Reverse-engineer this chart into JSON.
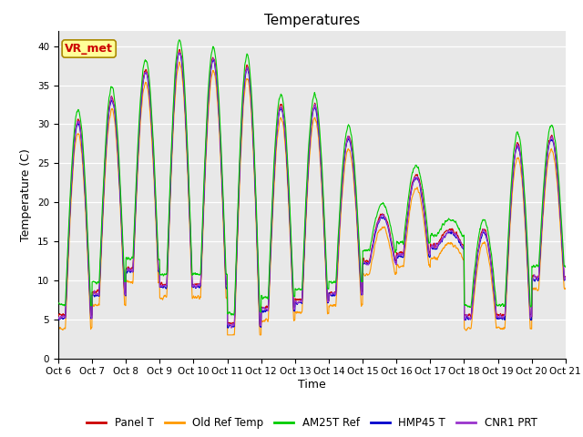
{
  "title": "Temperatures",
  "xlabel": "Time",
  "ylabel": "Temperature (C)",
  "ylim": [
    0,
    42
  ],
  "yticks": [
    0,
    5,
    10,
    15,
    20,
    25,
    30,
    35,
    40
  ],
  "date_labels": [
    "Oct 6",
    "Oct 7",
    "Oct 8",
    "Oct 9",
    "Oct 10",
    "Oct 11",
    "Oct 12",
    "Oct 13",
    "Oct 14",
    "Oct 15",
    "Oct 16",
    "Oct 17",
    "Oct 18",
    "Oct 19",
    "Oct 20",
    "Oct 21"
  ],
  "series_colors": [
    "#cc0000",
    "#ff9900",
    "#00cc00",
    "#0000cc",
    "#9933cc"
  ],
  "series_names": [
    "Panel T",
    "Old Ref Temp",
    "AM25T Ref",
    "HMP45 T",
    "CNR1 PRT"
  ],
  "annotation_text": "VR_met",
  "annotation_color": "#cc0000",
  "annotation_bg": "#ffff99",
  "annotation_edge": "#aa8800",
  "background_color": "#e8e8e8",
  "fig_bg": "#ffffff",
  "title_fontsize": 11,
  "tick_fontsize": 7.5,
  "axis_label_fontsize": 9,
  "legend_fontsize": 8.5,
  "num_days": 15,
  "points_per_day": 144,
  "day_peaks": [
    30,
    33,
    36.5,
    39,
    38,
    37,
    32,
    32,
    28,
    18,
    23,
    16,
    16,
    27,
    28
  ],
  "day_mins": [
    5,
    8,
    11,
    9,
    9,
    4,
    6,
    7,
    8,
    12,
    13,
    14,
    5,
    5,
    10
  ]
}
